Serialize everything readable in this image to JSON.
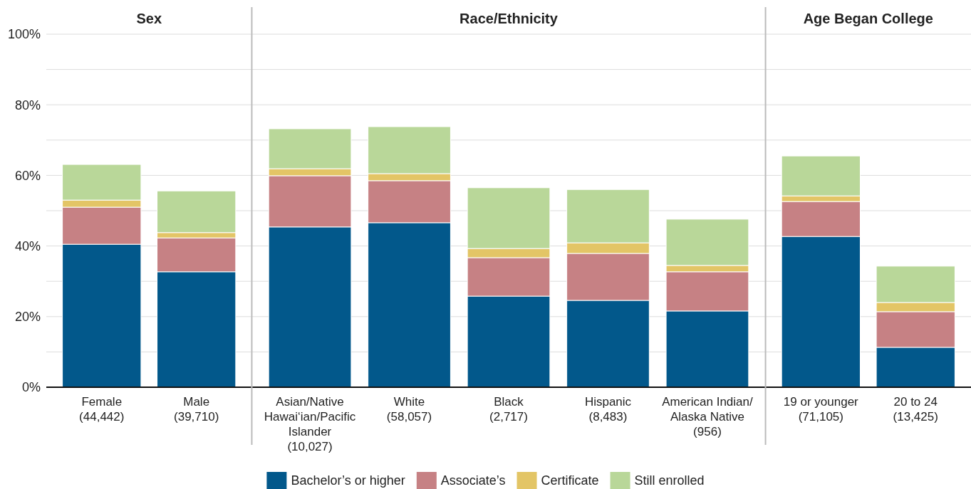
{
  "chart_data": [
    {
      "type": "bar",
      "stacked": true,
      "title": "Sex",
      "categories": [
        "Female\n(44,442)",
        "Male\n(39,710)"
      ],
      "ylim": [
        0,
        100
      ],
      "yticks": [
        {
          "value": 0,
          "label": "0%"
        },
        {
          "value": 10,
          "label": null
        },
        {
          "value": 20,
          "label": "20%"
        },
        {
          "value": 30,
          "label": null
        },
        {
          "value": 40,
          "label": "40%"
        },
        {
          "value": 50,
          "label": null
        },
        {
          "value": 60,
          "label": "60%"
        },
        {
          "value": 70,
          "label": null
        },
        {
          "value": 80,
          "label": "80%"
        },
        {
          "value": 90,
          "label": null
        },
        {
          "value": 100,
          "label": "100%"
        }
      ],
      "grid": true,
      "legend": "bottom",
      "series": [
        {
          "name": "Bachelor’s or higher",
          "color": "#02588b",
          "values": [
            40.5,
            32.7
          ]
        },
        {
          "name": "Associate’s",
          "color": "#c68184",
          "values": [
            10.5,
            9.6
          ]
        },
        {
          "name": "Certificate",
          "color": "#e3c566",
          "values": [
            2.0,
            1.5
          ]
        },
        {
          "name": "Still enrolled",
          "color": "#b9d799",
          "values": [
            10.1,
            11.8
          ]
        }
      ]
    },
    {
      "type": "bar",
      "stacked": true,
      "title": "Race/Ethnicity",
      "categories": [
        "Asian/Native\nHawai‘ian/Pacific\nIslander\n(10,027)",
        "White\n(58,057)",
        "Black\n(2,717)",
        "Hispanic\n(8,483)",
        "American Indian/\nAlaska Native\n(956)"
      ],
      "ylim": [
        0,
        100
      ],
      "yticks": [
        {
          "value": 0,
          "label": null
        },
        {
          "value": 10,
          "label": null
        },
        {
          "value": 20,
          "label": null
        },
        {
          "value": 30,
          "label": null
        },
        {
          "value": 40,
          "label": null
        },
        {
          "value": 50,
          "label": null
        },
        {
          "value": 60,
          "label": null
        },
        {
          "value": 70,
          "label": null
        },
        {
          "value": 80,
          "label": null
        },
        {
          "value": 90,
          "label": null
        },
        {
          "value": 100,
          "label": null
        }
      ],
      "grid": true,
      "tick_labels": "x",
      "series": [
        {
          "color": "#02588b",
          "values": [
            45.4,
            46.6,
            25.8,
            24.6,
            21.6
          ]
        },
        {
          "color": "#c68184",
          "values": [
            14.5,
            11.9,
            10.9,
            13.3,
            11.1
          ]
        },
        {
          "color": "#e3c566",
          "values": [
            2.0,
            2.0,
            2.6,
            3.0,
            1.8
          ]
        },
        {
          "color": "#b9d799",
          "values": [
            11.3,
            13.3,
            17.2,
            15.1,
            13.1
          ]
        }
      ]
    },
    {
      "type": "bar",
      "stacked": true,
      "title": "Age Began College",
      "categories": [
        "19 or younger\n(71,105)",
        "20 to 24\n(13,425)"
      ],
      "ylim": [
        0,
        100
      ],
      "yticks": [
        {
          "value": 0,
          "label": null
        },
        {
          "value": 10,
          "label": null
        },
        {
          "value": 20,
          "label": null
        },
        {
          "value": 30,
          "label": null
        },
        {
          "value": 40,
          "label": null
        },
        {
          "value": 50,
          "label": null
        },
        {
          "value": 60,
          "label": null
        },
        {
          "value": 70,
          "label": null
        },
        {
          "value": 80,
          "label": null
        },
        {
          "value": 90,
          "label": null
        },
        {
          "value": 100,
          "label": null
        }
      ],
      "grid": true,
      "tick_labels": "x",
      "series": [
        {
          "color": "#02588b",
          "values": [
            42.7,
            11.3
          ]
        },
        {
          "color": "#c68184",
          "values": [
            9.9,
            10.1
          ]
        },
        {
          "color": "#e3c566",
          "values": [
            1.6,
            2.6
          ]
        },
        {
          "color": "#b9d799",
          "values": [
            11.3,
            10.3
          ]
        }
      ]
    }
  ]
}
